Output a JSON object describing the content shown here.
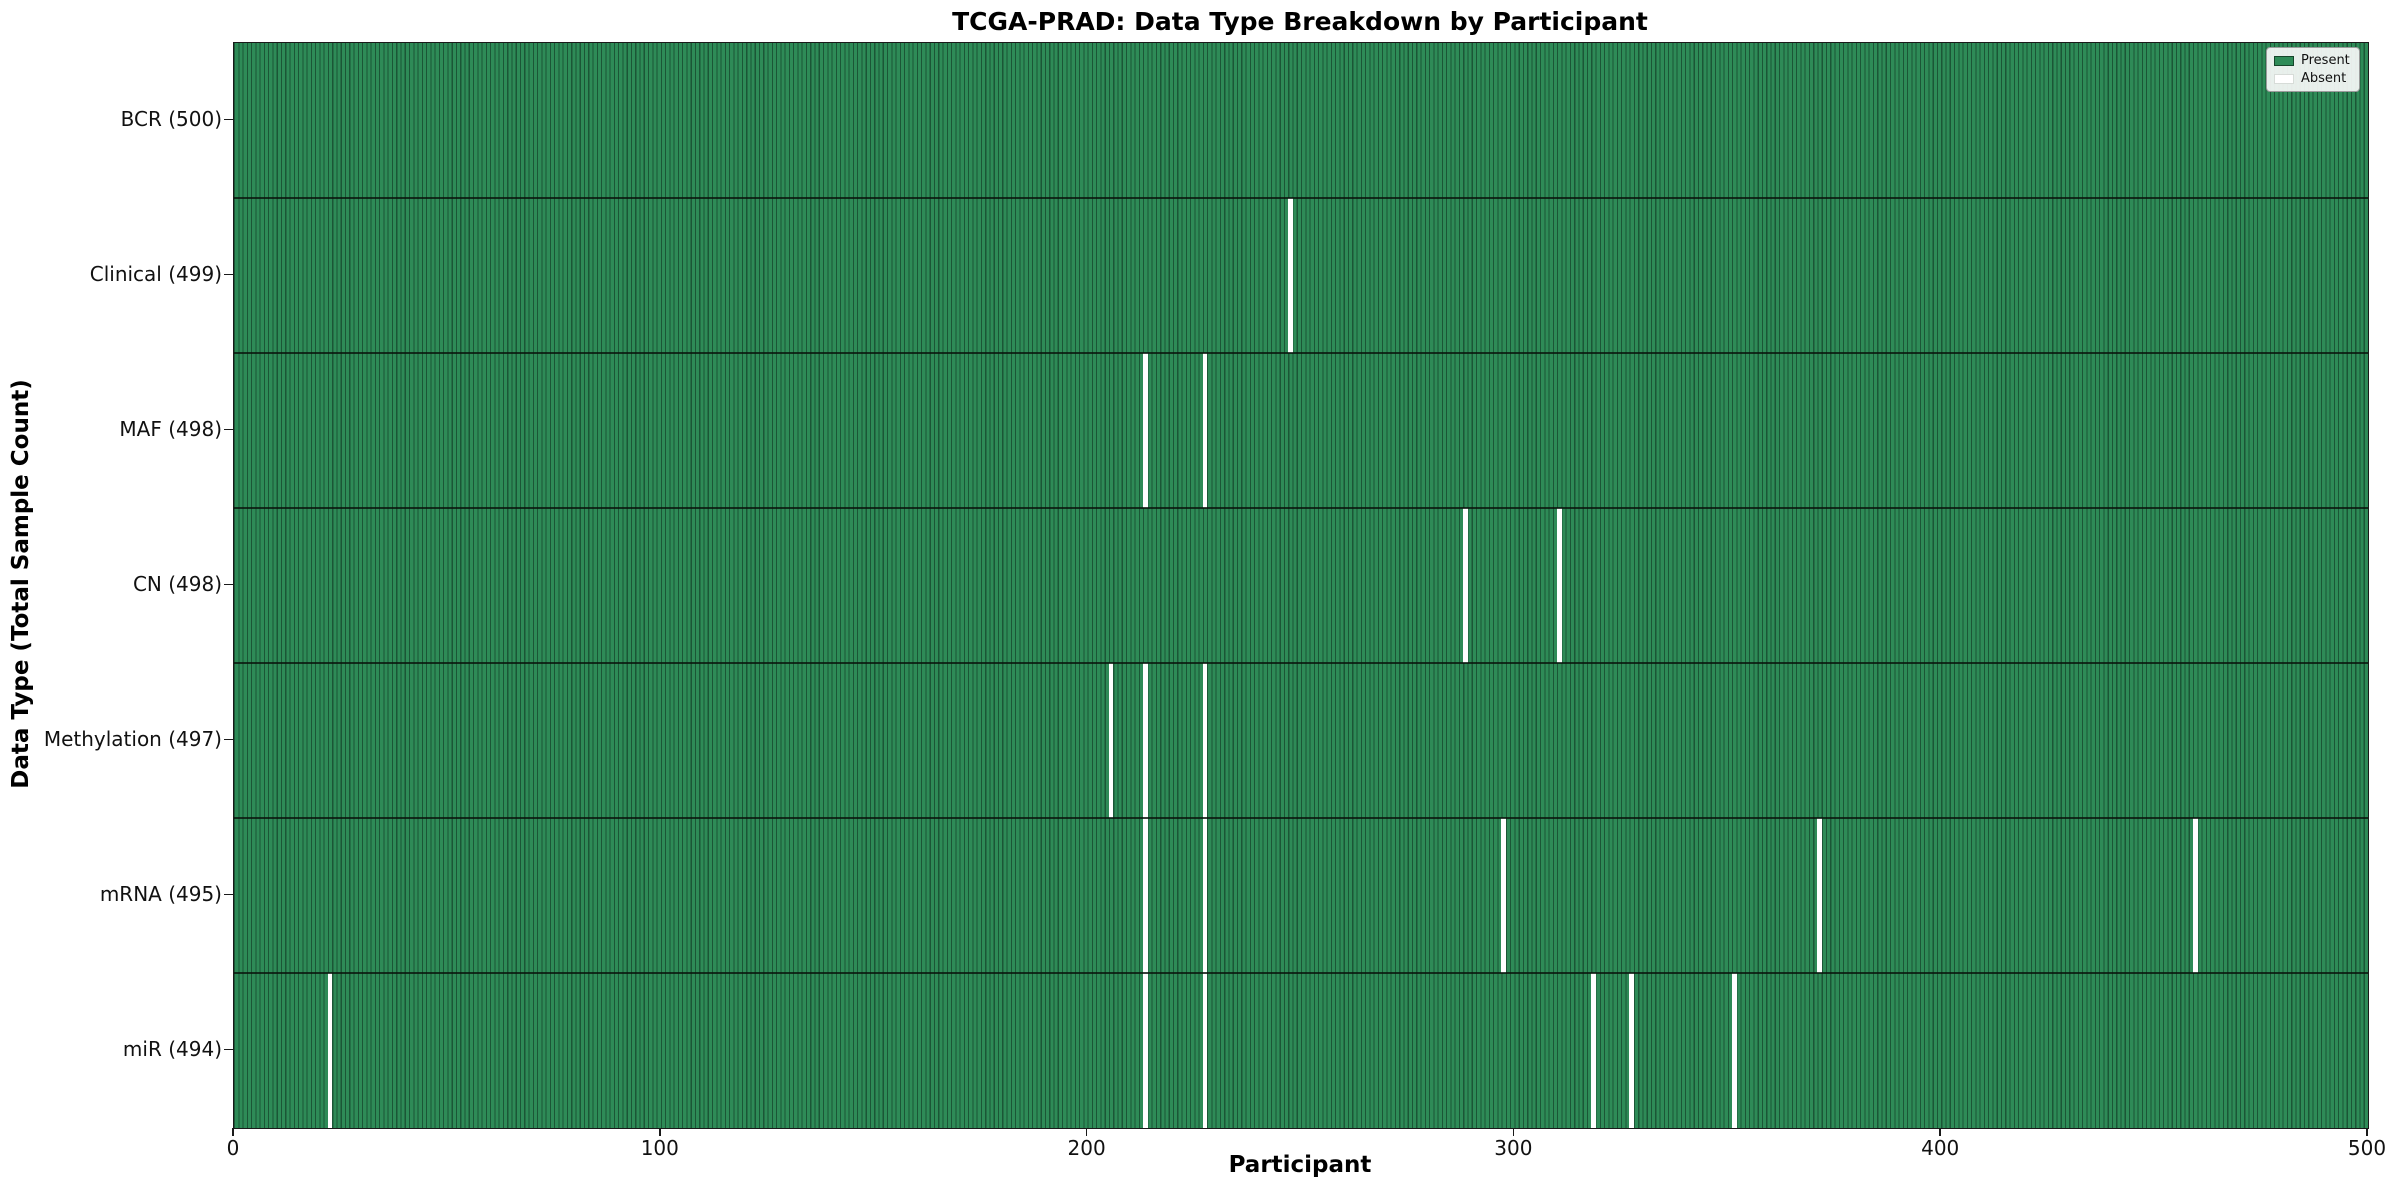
{
  "title": "TCGA-PRAD: Data Type Breakdown by Participant",
  "chart_data": {
    "type": "heatmap",
    "title": "TCGA-PRAD: Data Type Breakdown by Participant",
    "xlabel": "Participant",
    "ylabel": "Data Type (Total Sample Count)",
    "x_ticks": [
      0,
      100,
      200,
      300,
      400,
      500
    ],
    "x_range": [
      0,
      500
    ],
    "n_participants": 500,
    "grid": false,
    "legend": {
      "position": "upper right",
      "present_label": "Present",
      "absent_label": "Absent"
    },
    "colors": {
      "present": "#2E8B57",
      "absent": "#FFFFFF",
      "bar_edge": "#1B5636",
      "spine": "#1A1A1A"
    },
    "rows": [
      {
        "data_type": "BCR",
        "label": "BCR (500)",
        "total": 500,
        "absent_participants": []
      },
      {
        "data_type": "Clinical",
        "label": "Clinical (499)",
        "total": 499,
        "absent_participants": [
          247
        ]
      },
      {
        "data_type": "MAF",
        "label": "MAF (498)",
        "total": 498,
        "absent_participants": [
          213,
          227
        ]
      },
      {
        "data_type": "CN",
        "label": "CN (498)",
        "total": 498,
        "absent_participants": [
          288,
          310
        ]
      },
      {
        "data_type": "Methylation",
        "label": "Methylation (497)",
        "total": 497,
        "absent_participants": [
          205,
          213,
          227
        ]
      },
      {
        "data_type": "mRNA",
        "label": "mRNA (495)",
        "total": 495,
        "absent_participants": [
          213,
          227,
          297,
          371,
          459
        ]
      },
      {
        "data_type": "miR",
        "label": "miR (494)",
        "total": 494,
        "absent_participants": [
          22,
          213,
          227,
          318,
          327,
          351
        ]
      }
    ]
  }
}
